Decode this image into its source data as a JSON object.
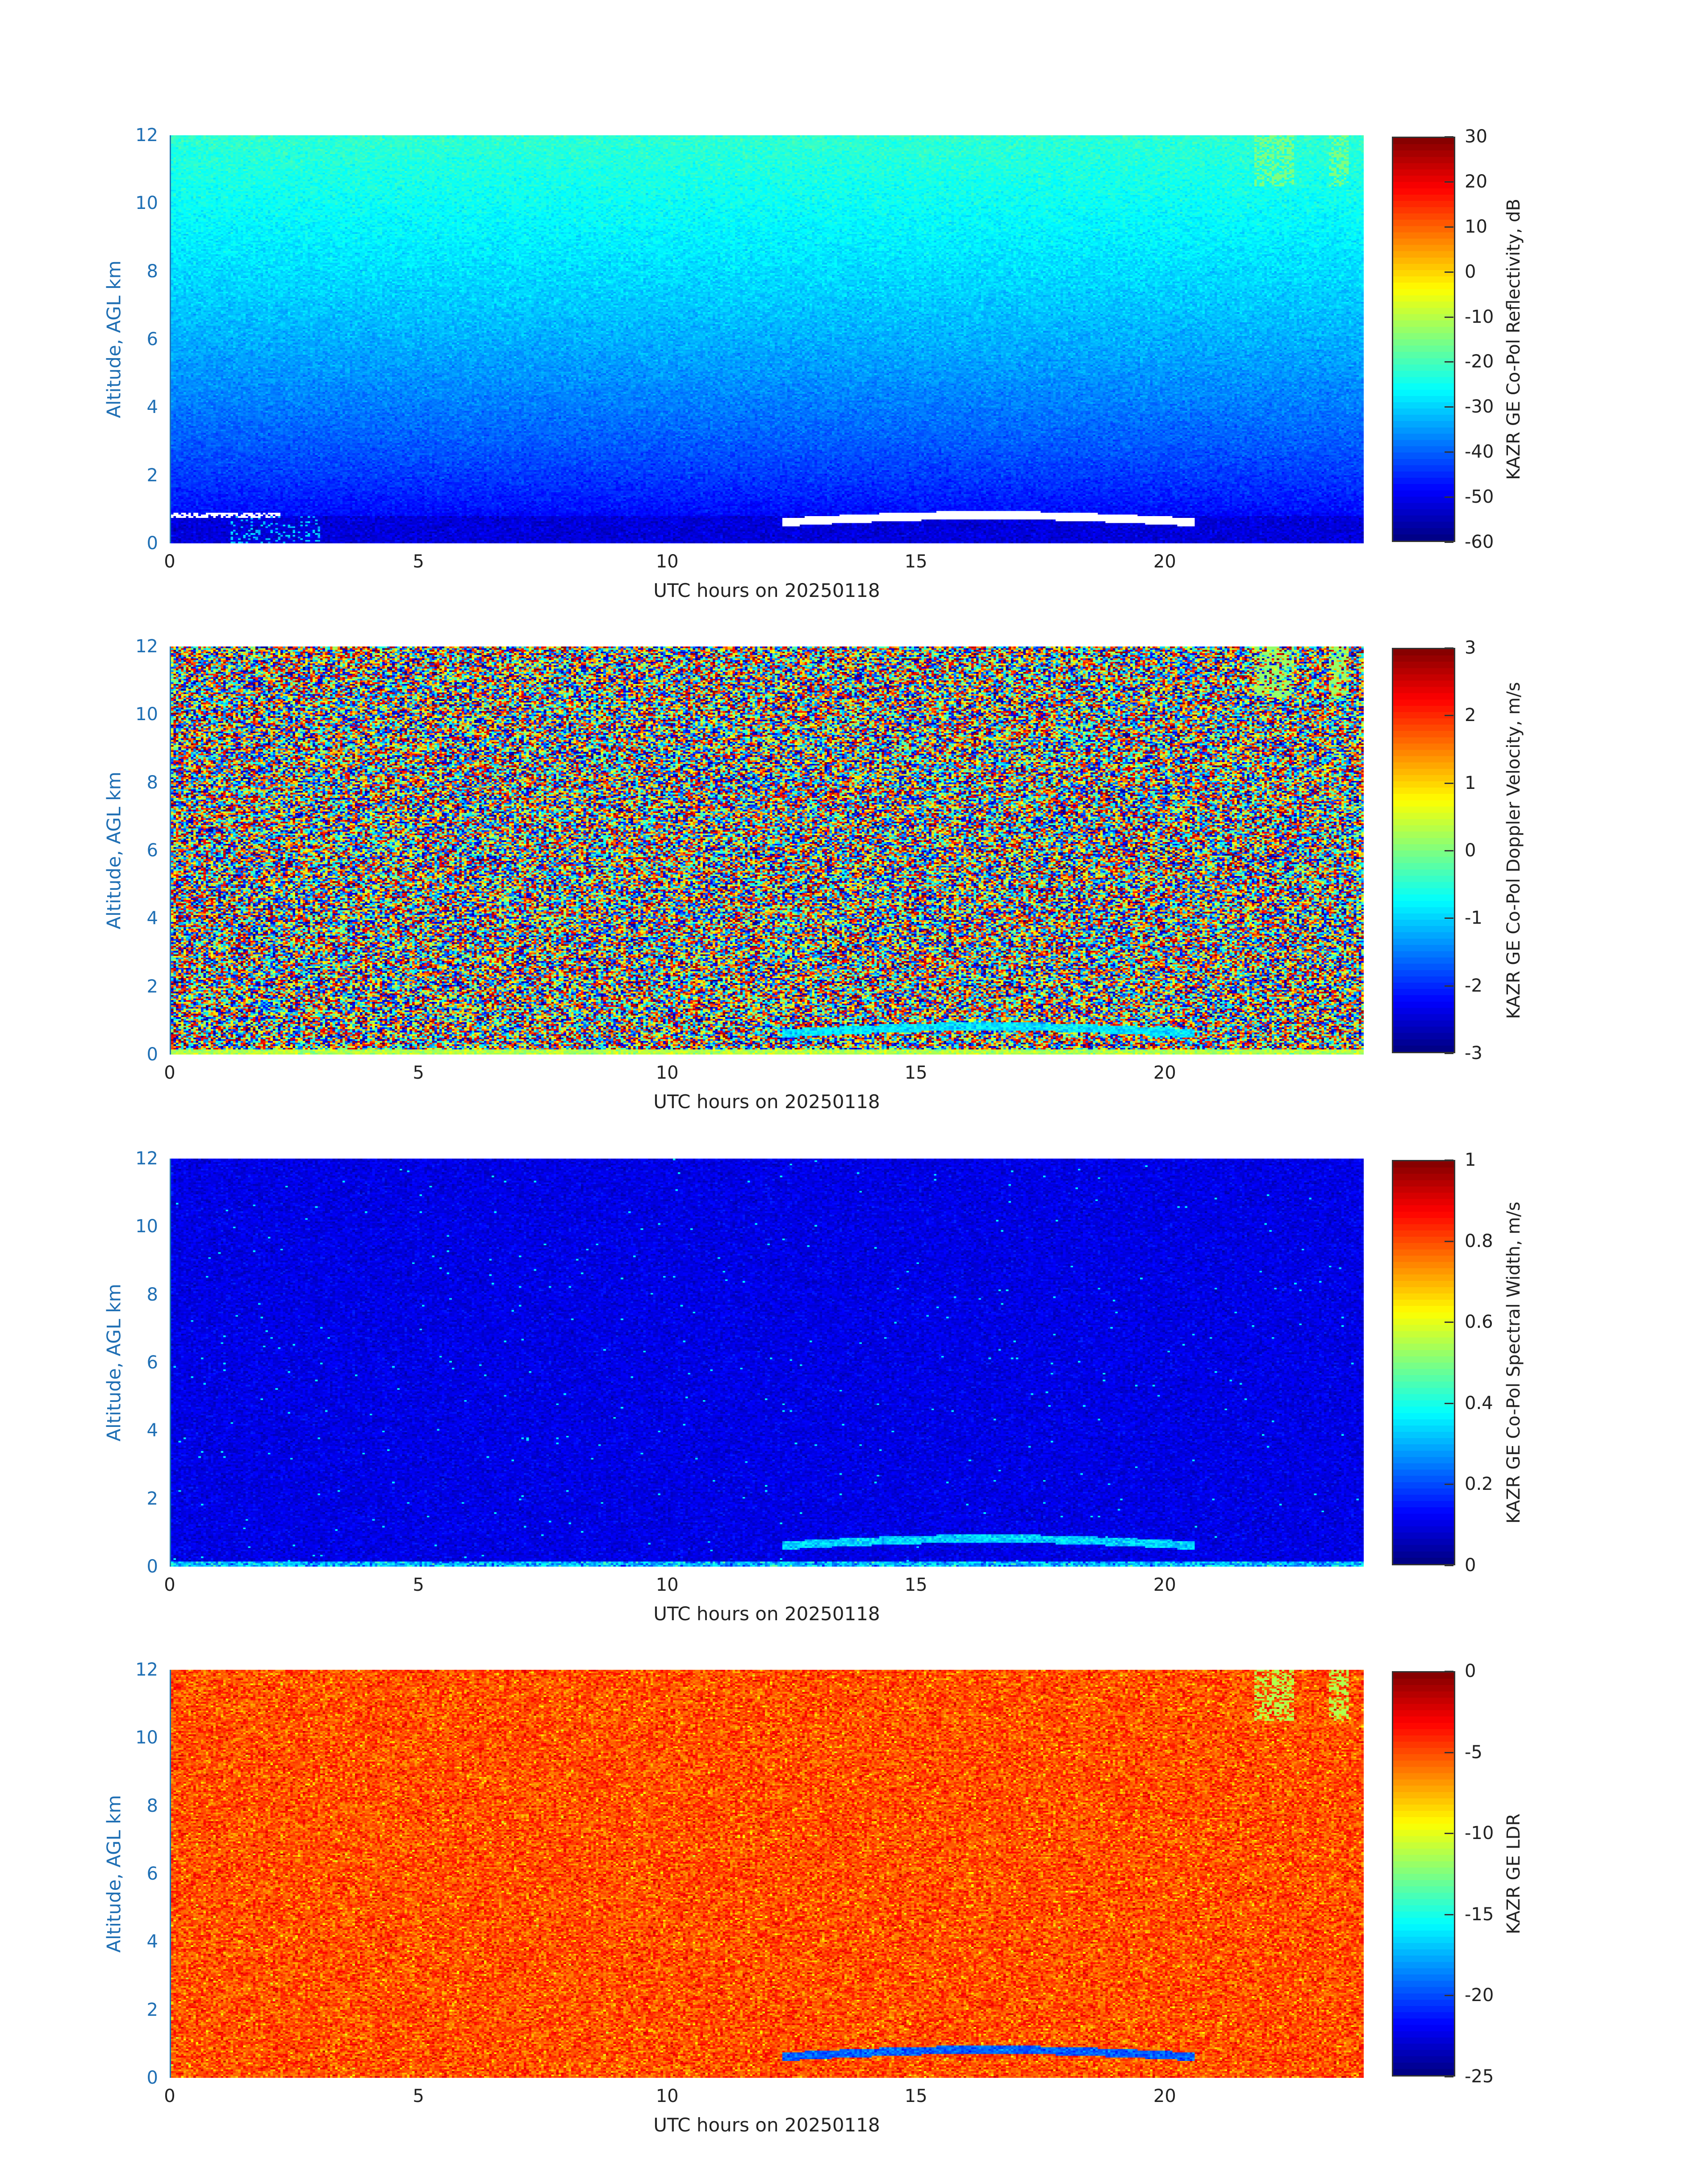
{
  "chart_data": [
    {
      "type": "heatmap",
      "xlabel": "UTC hours on 20250118",
      "ylabel": "Altitude, AGL km",
      "xlim": [
        0,
        24
      ],
      "ylim": [
        0,
        12
      ],
      "xticks": [
        "0",
        "5",
        "10",
        "15",
        "20"
      ],
      "yticks": [
        "0",
        "2",
        "4",
        "6",
        "8",
        "10",
        "12"
      ],
      "colorbar": {
        "label": "KAZR GE Co-Pol Reflectivity, dB",
        "range": [
          -60,
          30
        ],
        "ticks": [
          "30",
          "20",
          "10",
          "0",
          "-10",
          "-20",
          "-30",
          "-40",
          "-50",
          "-60"
        ],
        "colormap": "jet"
      }
    },
    {
      "type": "heatmap",
      "xlabel": "UTC hours on 20250118",
      "ylabel": "Altitude, AGL km",
      "xlim": [
        0,
        24
      ],
      "ylim": [
        0,
        12
      ],
      "xticks": [
        "0",
        "5",
        "10",
        "15",
        "20"
      ],
      "yticks": [
        "0",
        "2",
        "4",
        "6",
        "8",
        "10",
        "12"
      ],
      "colorbar": {
        "label": "KAZR GE Co-Pol Doppler Velocity, m/s",
        "range": [
          -3,
          3
        ],
        "ticks": [
          "3",
          "2",
          "1",
          "0",
          "-1",
          "-2",
          "-3"
        ],
        "colormap": "jet"
      }
    },
    {
      "type": "heatmap",
      "xlabel": "UTC hours on 20250118",
      "ylabel": "Altitude, AGL km",
      "xlim": [
        0,
        24
      ],
      "ylim": [
        0,
        12
      ],
      "xticks": [
        "0",
        "5",
        "10",
        "15",
        "20"
      ],
      "yticks": [
        "0",
        "2",
        "4",
        "6",
        "8",
        "10",
        "12"
      ],
      "colorbar": {
        "label": "KAZR GE Co-Pol Spectral Width, m/s",
        "range": [
          0,
          1
        ],
        "ticks": [
          "1",
          "0.8",
          "0.6",
          "0.4",
          "0.2",
          "0"
        ],
        "colormap": "jet"
      }
    },
    {
      "type": "heatmap",
      "xlabel": "UTC hours on 20250118",
      "ylabel": "Altitude, AGL km",
      "xlim": [
        0,
        24
      ],
      "ylim": [
        0,
        12
      ],
      "xticks": [
        "0",
        "5",
        "10",
        "15",
        "20"
      ],
      "yticks": [
        "0",
        "2",
        "4",
        "6",
        "8",
        "10",
        "12"
      ],
      "colorbar": {
        "label": "KAZR GE LDR",
        "range": [
          -25,
          0
        ],
        "ticks": [
          "0",
          "-5",
          "-10",
          "-15",
          "-20",
          "-25"
        ],
        "colormap": "jet"
      }
    }
  ]
}
